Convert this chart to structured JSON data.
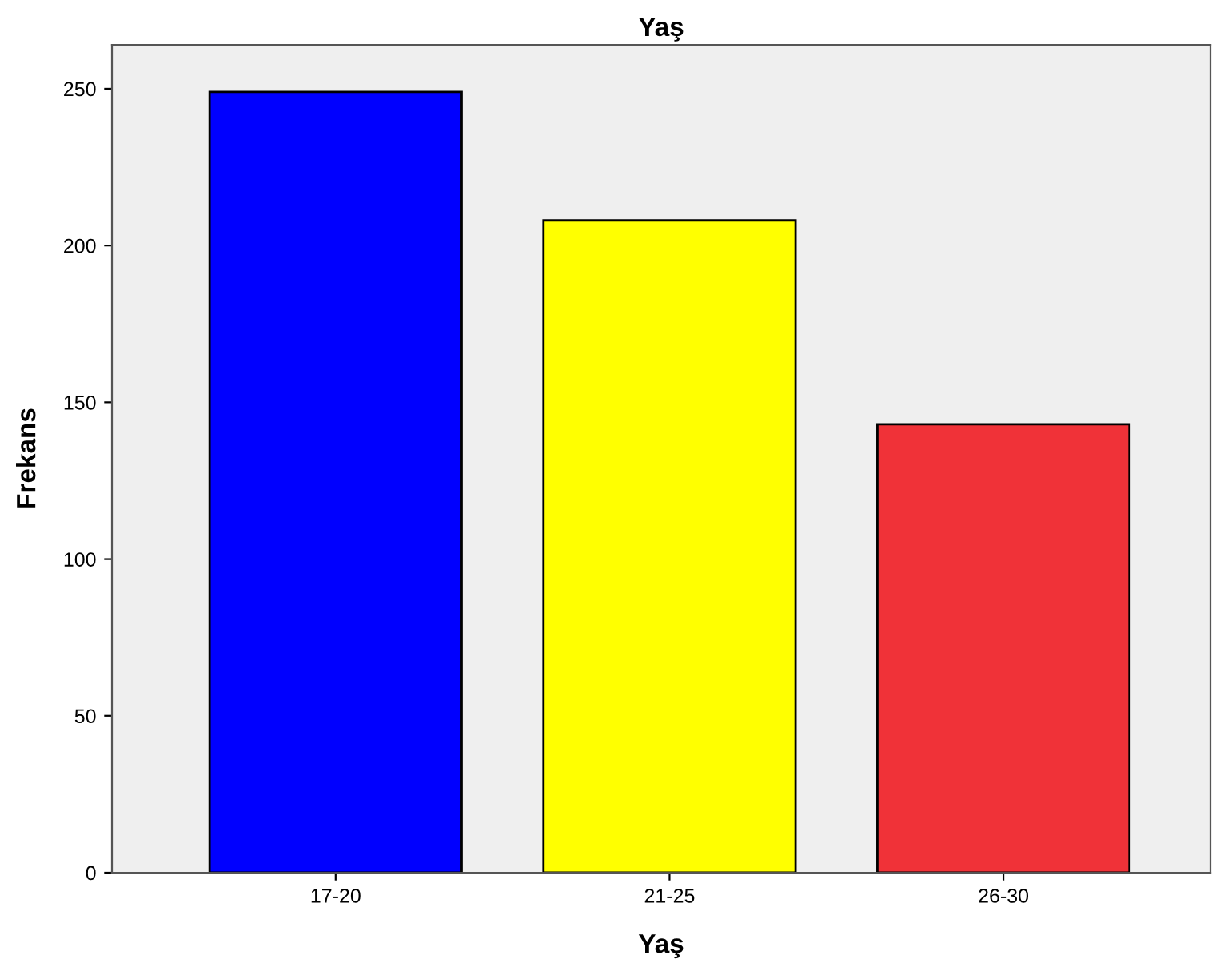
{
  "chart_data": {
    "type": "bar",
    "title": "Yaş",
    "xlabel": "Yaş",
    "ylabel": "Frekans",
    "categories": [
      "17-20",
      "21-25",
      "26-30"
    ],
    "values": [
      249,
      208,
      143
    ],
    "colors": [
      "#0000ff",
      "#ffff00",
      "#f03238"
    ],
    "ylim": [
      0,
      264
    ],
    "yticks": [
      0,
      50,
      100,
      150,
      200,
      250
    ],
    "grid": false,
    "legend": false
  }
}
